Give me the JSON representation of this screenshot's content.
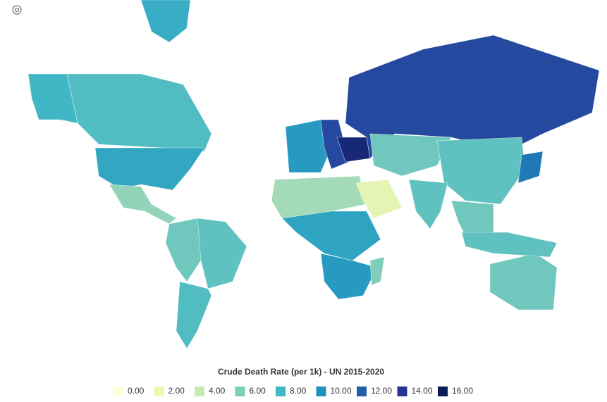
{
  "legend": {
    "title": "Crude Death Rate (per 1k) - UN 2015-2020",
    "ticks": [
      {
        "value": 0,
        "label": "0.00",
        "color": "#ffffd9"
      },
      {
        "value": 2,
        "label": "2.00",
        "color": "#edf8b1"
      },
      {
        "value": 4,
        "label": "4.00",
        "color": "#c7e9b4"
      },
      {
        "value": 6,
        "label": "6.00",
        "color": "#7fcdbb"
      },
      {
        "value": 8,
        "label": "8.00",
        "color": "#41b6c4"
      },
      {
        "value": 10,
        "label": "10.00",
        "color": "#1d91c0"
      },
      {
        "value": 12,
        "label": "12.00",
        "color": "#225ea8"
      },
      {
        "value": 14,
        "label": "14.00",
        "color": "#253494"
      },
      {
        "value": 16,
        "label": "16.00",
        "color": "#081d58"
      }
    ]
  },
  "map": {
    "values": [
      7.5,
      8.8,
      8,
      8.5,
      5.5,
      6.5,
      7,
      7.5,
      9.5,
      13,
      15,
      13,
      5,
      9,
      9.5,
      2.5,
      6.5,
      7,
      7,
      6.5,
      11,
      6.5,
      6,
      7
    ]
  }
}
